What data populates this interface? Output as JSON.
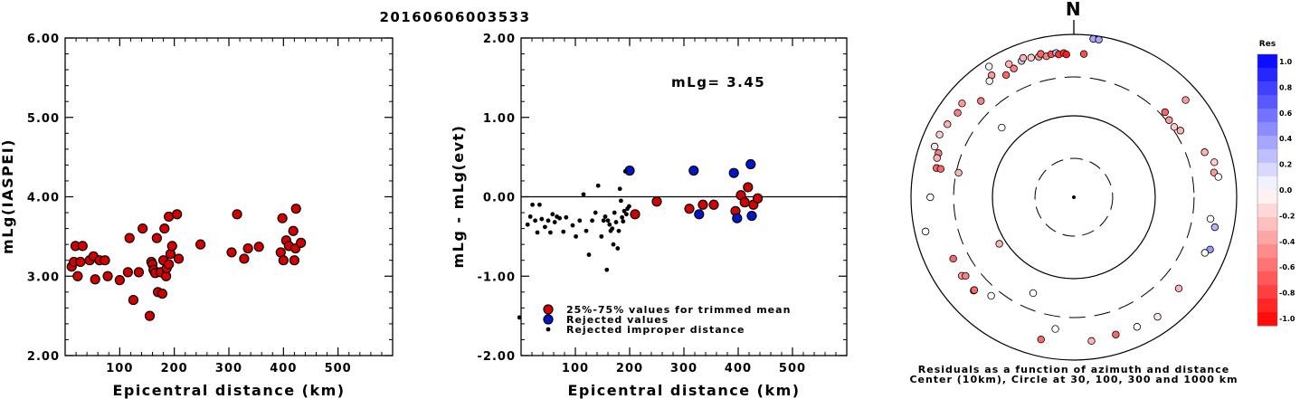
{
  "title": "20160606003533",
  "chart_data": [
    {
      "type": "scatter",
      "ylabel": "mLg(IASPEI)",
      "xlabel": "Epicentral distance (km)",
      "xlim": [
        0,
        600
      ],
      "ylim": [
        2.0,
        6.0
      ],
      "xticks": [
        "100",
        "200",
        "300",
        "400",
        "500"
      ],
      "yticks": [
        "2.00",
        "3.00",
        "4.00",
        "5.00",
        "6.00"
      ],
      "series": [
        {
          "color": "#d40000",
          "points": [
            [
              12,
              3.12
            ],
            [
              16,
              3.18
            ],
            [
              19,
              3.38
            ],
            [
              23,
              3.0
            ],
            [
              28,
              3.18
            ],
            [
              32,
              3.38
            ],
            [
              45,
              3.2
            ],
            [
              52,
              3.25
            ],
            [
              55,
              2.96
            ],
            [
              63,
              3.2
            ],
            [
              73,
              3.2
            ],
            [
              78,
              3.0
            ],
            [
              100,
              2.95
            ],
            [
              115,
              3.05
            ],
            [
              118,
              3.48
            ],
            [
              125,
              2.7
            ],
            [
              135,
              3.05
            ],
            [
              142,
              3.6
            ],
            [
              155,
              2.5
            ],
            [
              158,
              3.18
            ],
            [
              160,
              3.15
            ],
            [
              162,
              3.08
            ],
            [
              165,
              3.04
            ],
            [
              168,
              3.48
            ],
            [
              170,
              2.8
            ],
            [
              175,
              3.05
            ],
            [
              178,
              2.78
            ],
            [
              180,
              3.2
            ],
            [
              182,
              3.6
            ],
            [
              185,
              3.0
            ],
            [
              186,
              3.1
            ],
            [
              190,
              3.15
            ],
            [
              193,
              3.28
            ],
            [
              196,
              3.38
            ],
            [
              190,
              3.75
            ],
            [
              205,
              3.78
            ],
            [
              208,
              3.22
            ],
            [
              248,
              3.4
            ],
            [
              305,
              3.3
            ],
            [
              315,
              3.78
            ],
            [
              328,
              3.22
            ],
            [
              335,
              3.35
            ],
            [
              355,
              3.37
            ],
            [
              395,
              3.3
            ],
            [
              398,
              3.73
            ],
            [
              400,
              3.2
            ],
            [
              405,
              3.45
            ],
            [
              410,
              3.38
            ],
            [
              418,
              3.57
            ],
            [
              420,
              3.2
            ],
            [
              422,
              3.35
            ],
            [
              423,
              3.85
            ],
            [
              432,
              3.42
            ]
          ]
        }
      ]
    },
    {
      "type": "scatter",
      "ylabel": "mLg - mLg(evt)",
      "xlabel": "Epicentral distance (km)",
      "xlim": [
        0,
        600
      ],
      "ylim": [
        -2.0,
        2.0
      ],
      "xticks": [
        "100",
        "200",
        "300",
        "400",
        "500"
      ],
      "yticks": [
        "-2.00",
        "-1.00",
        "0.00",
        "1.00",
        "2.00"
      ],
      "annotation": "mLg= 3.45",
      "legend": [
        {
          "label": "25%-75% values for trimmed mean",
          "color": "#d40000"
        },
        {
          "label": "Rejected values",
          "color": "#0016cc"
        },
        {
          "label": "Rejected improper distance",
          "color": "#000000"
        }
      ],
      "series": [
        {
          "name": "25%-75% values for trimmed mean",
          "color": "#d40000",
          "points": [
            [
              210,
              -0.22
            ],
            [
              250,
              -0.06
            ],
            [
              310,
              -0.15
            ],
            [
              335,
              -0.1
            ],
            [
              355,
              -0.1
            ],
            [
              395,
              -0.18
            ],
            [
              405,
              0.02
            ],
            [
              412,
              -0.07
            ],
            [
              418,
              0.12
            ],
            [
              428,
              -0.1
            ],
            [
              436,
              -0.02
            ]
          ]
        },
        {
          "name": "Rejected values",
          "color": "#0016cc",
          "points": [
            [
              200,
              0.33
            ],
            [
              318,
              0.33
            ],
            [
              328,
              -0.22
            ],
            [
              392,
              0.3
            ],
            [
              398,
              -0.27
            ],
            [
              423,
              0.41
            ],
            [
              425,
              -0.24
            ]
          ]
        },
        {
          "name": "Rejected improper distance",
          "color": "#000000",
          "points": [
            [
              12,
              -0.35
            ],
            [
              17,
              -0.25
            ],
            [
              21,
              -0.1
            ],
            [
              26,
              -0.3
            ],
            [
              30,
              -0.45
            ],
            [
              34,
              -0.1
            ],
            [
              38,
              -0.28
            ],
            [
              44,
              -0.38
            ],
            [
              50,
              -0.3
            ],
            [
              54,
              -0.45
            ],
            [
              58,
              -0.22
            ],
            [
              62,
              -0.32
            ],
            [
              66,
              -0.25
            ],
            [
              71,
              -0.27
            ],
            [
              78,
              -0.44
            ],
            [
              83,
              -0.26
            ],
            [
              95,
              -0.36
            ],
            [
              101,
              -0.5
            ],
            [
              108,
              -0.3
            ],
            [
              115,
              0.03
            ],
            [
              120,
              -0.43
            ],
            [
              125,
              -0.73
            ],
            [
              131,
              -0.3
            ],
            [
              137,
              -0.2
            ],
            [
              142,
              0.14
            ],
            [
              148,
              -0.5
            ],
            [
              152,
              -0.3
            ],
            [
              155,
              -0.25
            ],
            [
              158,
              -0.92
            ],
            [
              160,
              -0.3
            ],
            [
              163,
              -0.35
            ],
            [
              165,
              -0.43
            ],
            [
              168,
              -0.4
            ],
            [
              170,
              -0.6
            ],
            [
              172,
              -0.2
            ],
            [
              175,
              -0.32
            ],
            [
              178,
              -0.65
            ],
            [
              180,
              -0.43
            ],
            [
              182,
              0.1
            ],
            [
              184,
              -0.05
            ],
            [
              186,
              -0.26
            ],
            [
              188,
              -0.31
            ],
            [
              190,
              -0.18
            ],
            [
              192,
              0.32
            ],
            [
              194,
              -0.22
            ],
            [
              196,
              -0.15
            ],
            [
              199,
              -0.12
            ],
            [
              -3,
              -1.52
            ]
          ]
        }
      ]
    },
    {
      "type": "polar-scatter",
      "north_label": "N",
      "caption": [
        "Residuals as a function of azimuth and distance",
        "Center (10km), Circle at 30, 100, 300 and 1000 km"
      ],
      "colorbar": {
        "title": "Res",
        "ticks": [
          "1.0",
          "0.8",
          "0.6",
          "0.4",
          "0.2",
          "0.0",
          "-0.2",
          "-0.4",
          "-0.6",
          "-0.8",
          "-1.0"
        ],
        "max_color": "#0000ff",
        "zero_color": "#ffffff",
        "min_color": "#ff0000"
      },
      "points": [
        {
          "az": 326,
          "dist": 640,
          "res": -0.4
        },
        {
          "az": 334,
          "dist": 660,
          "res": -0.3
        },
        {
          "az": 327,
          "dist": 820,
          "res": 0.05
        },
        {
          "az": 339,
          "dist": 620,
          "res": 0.2
        },
        {
          "az": 340,
          "dist": 660,
          "res": -0.3
        },
        {
          "az": 343,
          "dist": 620,
          "res": -0.2
        },
        {
          "az": 346,
          "dist": 600,
          "res": -0.4
        },
        {
          "az": 347,
          "dist": 640,
          "res": -0.6
        },
        {
          "az": 349,
          "dist": 580,
          "res": -0.5
        },
        {
          "az": 351,
          "dist": 600,
          "res": -0.7
        },
        {
          "az": 353,
          "dist": 610,
          "res": 0.3
        },
        {
          "az": 354,
          "dist": 580,
          "res": -0.8
        },
        {
          "az": 356,
          "dist": 595,
          "res": -0.8
        },
        {
          "az": 357,
          "dist": 570,
          "res": -0.9
        },
        {
          "az": 7,
          "dist": 910,
          "res": 0.35
        },
        {
          "az": 9,
          "dist": 910,
          "res": 0.35
        },
        {
          "az": 4,
          "dist": 580,
          "res": -0.7
        },
        {
          "az": 324,
          "dist": 580,
          "res": 0.05
        },
        {
          "az": 310,
          "dist": 620,
          "res": -0.4
        },
        {
          "az": 306,
          "dist": 580,
          "res": -0.5
        },
        {
          "az": 300,
          "dist": 620,
          "res": -0.3
        },
        {
          "az": 295,
          "dist": 660,
          "res": -0.2
        },
        {
          "az": 290,
          "dist": 660,
          "res": -0.1
        },
        {
          "az": 288,
          "dist": 560,
          "res": -0.5
        },
        {
          "az": 286,
          "dist": 560,
          "res": -0.3
        },
        {
          "az": 282,
          "dist": 530,
          "res": -0.6
        },
        {
          "az": 270,
          "dist": 580,
          "res": 0.0
        },
        {
          "az": 316,
          "dist": 440,
          "res": -0.5
        },
        {
          "az": 47,
          "dist": 340,
          "res": -0.6
        },
        {
          "az": 51,
          "dist": 320,
          "res": -0.4
        },
        {
          "az": 55,
          "dist": 320,
          "res": -0.2
        },
        {
          "az": 58,
          "dist": 350,
          "res": -0.3
        },
        {
          "az": 49,
          "dist": 660,
          "res": -0.4
        },
        {
          "az": 71,
          "dist": 500,
          "res": -0.3
        },
        {
          "az": 76,
          "dist": 600,
          "res": -0.2
        },
        {
          "az": 80,
          "dist": 560,
          "res": -0.4
        },
        {
          "az": 82,
          "dist": 620,
          "res": 0.0
        },
        {
          "az": 102,
          "dist": 590,
          "res": 0.3
        },
        {
          "az": 111,
          "dist": 620,
          "res": 0.4
        },
        {
          "az": 113,
          "dist": 560,
          "res": 0.0
        },
        {
          "az": 99,
          "dist": 500,
          "res": 0.0
        },
        {
          "az": 131,
          "dist": 510,
          "res": -0.3
        },
        {
          "az": 145,
          "dist": 620,
          "res": -0.1
        },
        {
          "az": 154,
          "dist": 590,
          "res": 0.0
        },
        {
          "az": 163,
          "dist": 580,
          "res": -0.6
        },
        {
          "az": 173,
          "dist": 600,
          "res": -0.3
        },
        {
          "az": 188,
          "dist": 430,
          "res": 0.0
        },
        {
          "az": 193,
          "dist": 620,
          "res": -0.6
        },
        {
          "az": 220,
          "dist": 380,
          "res": 0.0
        },
        {
          "az": 227,
          "dist": 480,
          "res": -0.3
        },
        {
          "az": 227,
          "dist": 470,
          "res": -0.6
        },
        {
          "az": 235,
          "dist": 480,
          "res": -0.4
        },
        {
          "az": 243,
          "dist": 460,
          "res": -0.6
        },
        {
          "az": 234,
          "dist": 440,
          "res": -0.5
        },
        {
          "az": 257,
          "dist": 740,
          "res": 0.0
        },
        {
          "az": 282,
          "dist": 280,
          "res": -0.3
        },
        {
          "az": 314,
          "dist": 170,
          "res": 0.0
        },
        {
          "az": 238,
          "dist": 120,
          "res": -0.3
        },
        {
          "az": 203,
          "dist": 190,
          "res": 0.0
        },
        {
          "az": 282,
          "dist": 470,
          "res": -0.6
        },
        {
          "az": 331,
          "dist": 520,
          "res": -0.6
        },
        {
          "az": 335,
          "dist": 555,
          "res": -0.5
        }
      ]
    }
  ]
}
